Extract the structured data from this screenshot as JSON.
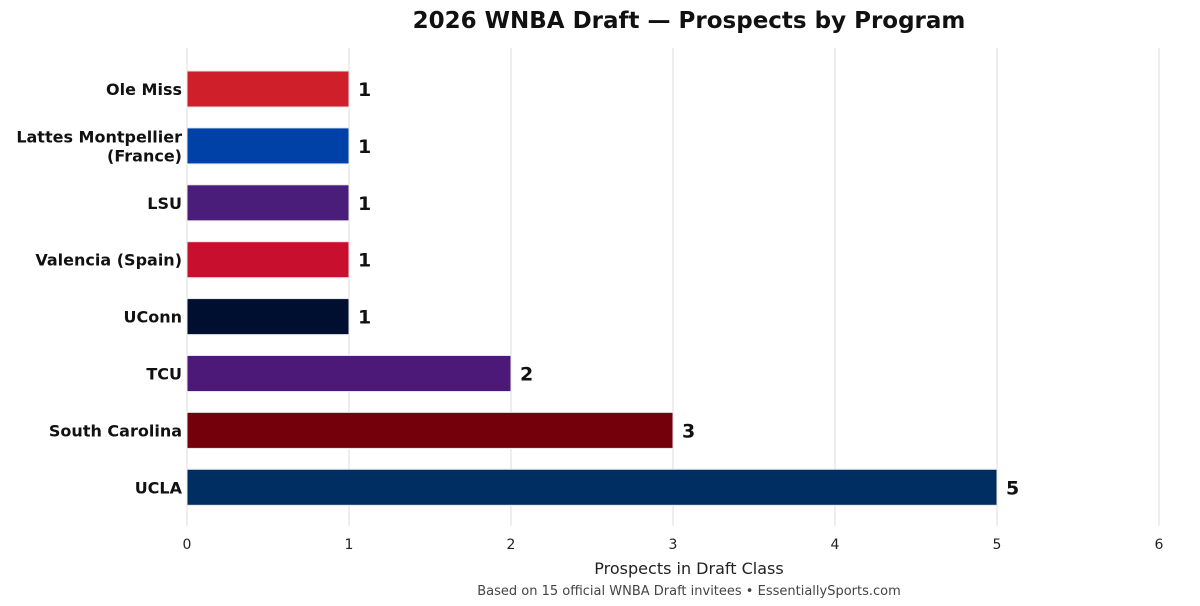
{
  "chart_data": {
    "type": "bar",
    "orientation": "horizontal",
    "title": "2026 WNBA Draft — Prospects by Program",
    "xlabel": "Prospects in Draft Class",
    "ylabel": "",
    "footnote": "Based on 15 official WNBA Draft invitees • EssentiallySports.com",
    "xlim": [
      0,
      6
    ],
    "xticks": [
      "0",
      "1",
      "2",
      "3",
      "4",
      "5",
      "6"
    ],
    "grid": "vertical",
    "categories": [
      [
        "Ole Miss"
      ],
      [
        "Lattes Montpellier",
        "(France)"
      ],
      [
        "LSU"
      ],
      [
        "Valencia (Spain)"
      ],
      [
        "UConn"
      ],
      [
        "TCU"
      ],
      [
        "South Carolina"
      ],
      [
        "UCLA"
      ]
    ],
    "values": [
      1,
      1,
      1,
      1,
      1,
      2,
      3,
      5
    ],
    "colors": [
      "#CE1F2B",
      "#0041A8",
      "#4A1D7A",
      "#C8102E",
      "#000E2F",
      "#4D1979",
      "#73000A",
      "#002D62"
    ]
  }
}
